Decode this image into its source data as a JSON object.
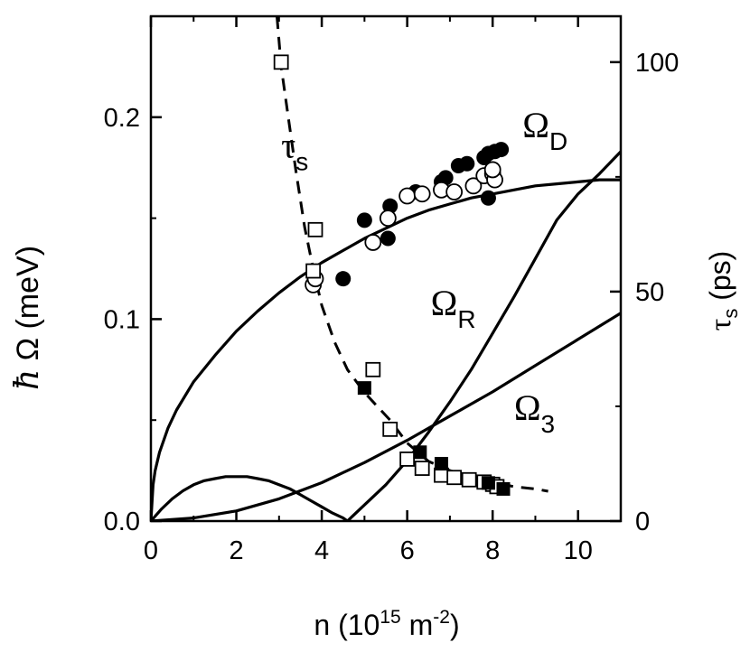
{
  "chart_data": {
    "type": "scatter",
    "x": {
      "label_text": "n (10",
      "label_exp": "15",
      "label_unit_text": " m",
      "label_unit_exp": "-2",
      "label_close": ")",
      "range": [
        0,
        11
      ],
      "ticks": [
        0,
        2,
        4,
        6,
        8,
        10
      ],
      "tick_labels": [
        "0",
        "2",
        "4",
        "6",
        "8",
        "10"
      ]
    },
    "y_left": {
      "label_hbar": "ħ",
      "label_rest": " Ω  (meV)",
      "range": [
        0,
        0.25
      ],
      "ticks": [
        0.0,
        0.1,
        0.2
      ],
      "tick_labels": [
        "0.0",
        "0.1",
        "0.2"
      ],
      "minor_ticks": [
        0.05,
        0.15
      ]
    },
    "y_right": {
      "label_tau": "τ",
      "label_sub": "s",
      "label_unit": " (ps)",
      "range": [
        0,
        110
      ],
      "ticks": [
        0,
        50,
        100
      ],
      "tick_labels": [
        "0",
        "50",
        "100"
      ],
      "minor_ticks": [
        25,
        75
      ]
    },
    "grid": false,
    "legend": "none",
    "annotations": [
      {
        "main": "τ",
        "sub": "s",
        "at": [
          3.05,
          0.18
        ]
      },
      {
        "main": "Ω",
        "sub": "D",
        "at": [
          8.7,
          0.19
        ]
      },
      {
        "main": "Ω",
        "sub": "R",
        "at": [
          6.55,
          0.102
        ]
      },
      {
        "main": "Ω",
        "sub": "3",
        "at": [
          8.5,
          0.05
        ]
      }
    ],
    "series": [
      {
        "kind": "line",
        "axis": "left",
        "style": "solid",
        "points": [
          [
            0,
            0
          ],
          [
            0.05,
            0.018
          ],
          [
            0.1,
            0.025
          ],
          [
            0.2,
            0.034
          ],
          [
            0.4,
            0.046
          ],
          [
            0.6,
            0.055
          ],
          [
            1,
            0.069
          ],
          [
            1.5,
            0.082
          ],
          [
            2,
            0.094
          ],
          [
            2.5,
            0.104
          ],
          [
            3,
            0.113
          ],
          [
            3.5,
            0.121
          ],
          [
            4,
            0.128
          ],
          [
            4.5,
            0.134
          ],
          [
            5,
            0.14
          ],
          [
            5.5,
            0.145
          ],
          [
            6,
            0.15
          ],
          [
            6.5,
            0.154
          ],
          [
            7,
            0.157
          ],
          [
            7.5,
            0.16
          ],
          [
            8,
            0.162
          ],
          [
            8.5,
            0.164
          ],
          [
            9,
            0.166
          ],
          [
            9.5,
            0.167
          ],
          [
            10,
            0.168
          ],
          [
            10.5,
            0.169
          ],
          [
            11,
            0.169
          ]
        ]
      },
      {
        "kind": "line",
        "axis": "left",
        "style": "solid",
        "points": [
          [
            0,
            0
          ],
          [
            0.25,
            0.006
          ],
          [
            0.5,
            0.011
          ],
          [
            0.75,
            0.015
          ],
          [
            1,
            0.018
          ],
          [
            1.25,
            0.02
          ],
          [
            1.5,
            0.021
          ],
          [
            1.75,
            0.022
          ],
          [
            2,
            0.022
          ],
          [
            2.25,
            0.022
          ],
          [
            2.5,
            0.021
          ],
          [
            2.75,
            0.02
          ],
          [
            3,
            0.018
          ],
          [
            3.25,
            0.016
          ],
          [
            3.5,
            0.013
          ],
          [
            3.75,
            0.01
          ],
          [
            4,
            0.007
          ],
          [
            4.25,
            0.004
          ],
          [
            4.5,
            0.0015
          ],
          [
            4.6,
            0
          ],
          [
            4.75,
            0.003
          ],
          [
            5,
            0.008
          ],
          [
            5.5,
            0.018
          ],
          [
            6,
            0.03
          ],
          [
            6.5,
            0.044
          ],
          [
            7,
            0.059
          ],
          [
            7.5,
            0.075
          ],
          [
            8,
            0.093
          ],
          [
            8.5,
            0.111
          ],
          [
            9,
            0.13
          ],
          [
            9.5,
            0.149
          ],
          [
            10,
            0.162
          ],
          [
            10.5,
            0.172
          ],
          [
            11,
            0.183
          ]
        ]
      },
      {
        "kind": "line",
        "axis": "left",
        "style": "solid",
        "points": [
          [
            0,
            0
          ],
          [
            1,
            0.0015
          ],
          [
            2,
            0.005
          ],
          [
            3,
            0.011
          ],
          [
            4,
            0.019
          ],
          [
            5,
            0.029
          ],
          [
            6,
            0.04
          ],
          [
            7,
            0.052
          ],
          [
            8,
            0.064
          ],
          [
            9,
            0.077
          ],
          [
            10,
            0.09
          ],
          [
            11,
            0.103
          ]
        ]
      },
      {
        "kind": "line",
        "axis": "right",
        "style": "dashed",
        "points": [
          [
            2.95,
            110
          ],
          [
            3.05,
            99
          ],
          [
            3.2,
            89
          ],
          [
            3.4,
            76
          ],
          [
            3.6,
            64
          ],
          [
            3.8,
            55
          ],
          [
            4.0,
            47
          ],
          [
            4.3,
            39
          ],
          [
            4.6,
            33
          ],
          [
            5.0,
            28
          ],
          [
            5.3,
            25
          ],
          [
            5.6,
            22
          ],
          [
            6.0,
            17
          ],
          [
            6.5,
            13
          ],
          [
            7.0,
            11
          ],
          [
            7.5,
            9.5
          ],
          [
            8.0,
            8.5
          ],
          [
            8.5,
            7.5
          ],
          [
            9.0,
            7
          ],
          [
            9.3,
            6.5
          ]
        ]
      },
      {
        "kind": "marker",
        "axis": "left",
        "marker": "filled-circle",
        "points": [
          [
            4.5,
            0.12
          ],
          [
            5.0,
            0.149
          ],
          [
            5.55,
            0.14
          ],
          [
            5.6,
            0.156
          ],
          [
            6.2,
            0.163
          ],
          [
            6.8,
            0.168
          ],
          [
            7.2,
            0.176
          ],
          [
            7.4,
            0.177
          ],
          [
            7.8,
            0.18
          ],
          [
            7.9,
            0.182
          ],
          [
            8.05,
            0.183
          ],
          [
            8.2,
            0.184
          ],
          [
            7.9,
            0.16
          ],
          [
            6.9,
            0.17
          ]
        ]
      },
      {
        "kind": "marker",
        "axis": "left",
        "marker": "open-circle",
        "points": [
          [
            3.8,
            0.117
          ],
          [
            3.85,
            0.12
          ],
          [
            5.2,
            0.138
          ],
          [
            5.55,
            0.15
          ],
          [
            6.0,
            0.161
          ],
          [
            6.35,
            0.162
          ],
          [
            6.8,
            0.164
          ],
          [
            7.1,
            0.163
          ],
          [
            7.55,
            0.166
          ],
          [
            7.8,
            0.171
          ],
          [
            8.0,
            0.172
          ],
          [
            8.05,
            0.169
          ],
          [
            8.0,
            0.174
          ]
        ]
      },
      {
        "kind": "marker",
        "axis": "right",
        "marker": "open-square",
        "points": [
          [
            3.05,
            100
          ],
          [
            3.85,
            63.5
          ],
          [
            3.8,
            54.5
          ],
          [
            5.2,
            33
          ],
          [
            5.6,
            20
          ],
          [
            6.0,
            13.5
          ],
          [
            6.35,
            11.5
          ],
          [
            6.8,
            10
          ],
          [
            7.1,
            9.5
          ],
          [
            7.45,
            9
          ],
          [
            7.8,
            8.5
          ],
          [
            8.0,
            8
          ],
          [
            8.1,
            7.5
          ]
        ]
      },
      {
        "kind": "marker",
        "axis": "right",
        "marker": "filled-square",
        "points": [
          [
            5.0,
            29
          ],
          [
            6.3,
            15
          ],
          [
            6.8,
            12.5
          ],
          [
            7.9,
            8.3
          ],
          [
            8.25,
            7
          ]
        ]
      }
    ]
  }
}
